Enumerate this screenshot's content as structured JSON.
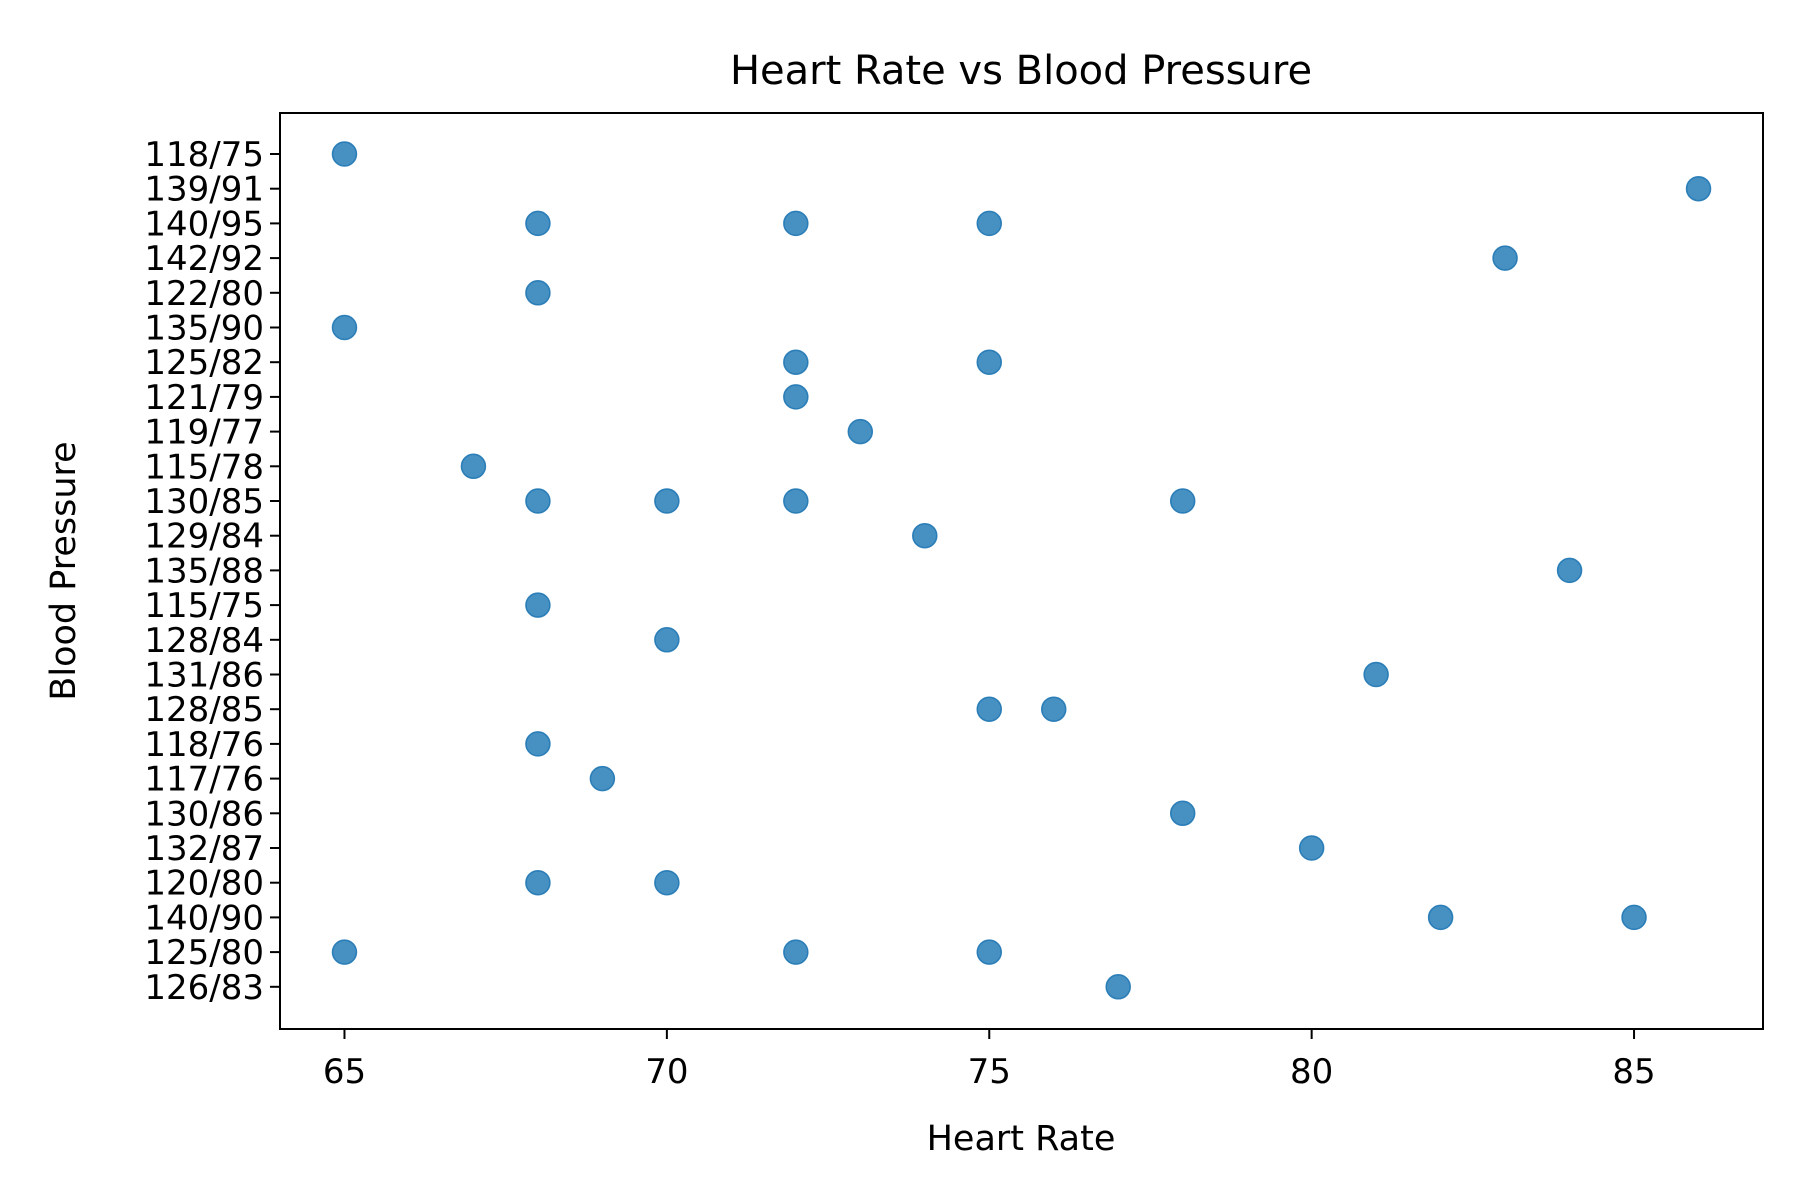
{
  "chart_data": {
    "type": "scatter",
    "title": "Heart Rate vs Blood Pressure",
    "xlabel": "Heart Rate",
    "ylabel": "Blood Pressure",
    "x_ticks": [
      65,
      70,
      75,
      80,
      85
    ],
    "xlim": [
      64,
      87
    ],
    "y_categories": [
      "118/75",
      "139/91",
      "140/95",
      "142/92",
      "122/80",
      "135/90",
      "125/82",
      "121/79",
      "119/77",
      "115/78",
      "130/85",
      "129/84",
      "135/88",
      "115/75",
      "128/84",
      "131/86",
      "128/85",
      "118/76",
      "117/76",
      "130/86",
      "132/87",
      "120/80",
      "140/90",
      "125/80",
      "126/83"
    ],
    "marker_color": "#1f77b4",
    "grid": false,
    "points": [
      {
        "x": 65,
        "y": "118/75"
      },
      {
        "x": 86,
        "y": "139/91"
      },
      {
        "x": 68,
        "y": "140/95"
      },
      {
        "x": 72,
        "y": "140/95"
      },
      {
        "x": 75,
        "y": "140/95"
      },
      {
        "x": 83,
        "y": "142/92"
      },
      {
        "x": 68,
        "y": "122/80"
      },
      {
        "x": 65,
        "y": "135/90"
      },
      {
        "x": 72,
        "y": "125/82"
      },
      {
        "x": 75,
        "y": "125/82"
      },
      {
        "x": 72,
        "y": "121/79"
      },
      {
        "x": 73,
        "y": "119/77"
      },
      {
        "x": 67,
        "y": "115/78"
      },
      {
        "x": 68,
        "y": "130/85"
      },
      {
        "x": 70,
        "y": "130/85"
      },
      {
        "x": 72,
        "y": "130/85"
      },
      {
        "x": 78,
        "y": "130/85"
      },
      {
        "x": 74,
        "y": "129/84"
      },
      {
        "x": 84,
        "y": "135/88"
      },
      {
        "x": 68,
        "y": "115/75"
      },
      {
        "x": 70,
        "y": "128/84"
      },
      {
        "x": 81,
        "y": "131/86"
      },
      {
        "x": 75,
        "y": "128/85"
      },
      {
        "x": 76,
        "y": "128/85"
      },
      {
        "x": 68,
        "y": "118/76"
      },
      {
        "x": 69,
        "y": "117/76"
      },
      {
        "x": 78,
        "y": "130/86"
      },
      {
        "x": 80,
        "y": "132/87"
      },
      {
        "x": 68,
        "y": "120/80"
      },
      {
        "x": 70,
        "y": "120/80"
      },
      {
        "x": 82,
        "y": "140/90"
      },
      {
        "x": 85,
        "y": "140/90"
      },
      {
        "x": 65,
        "y": "125/80"
      },
      {
        "x": 72,
        "y": "125/80"
      },
      {
        "x": 75,
        "y": "125/80"
      },
      {
        "x": 77,
        "y": "126/83"
      }
    ]
  }
}
